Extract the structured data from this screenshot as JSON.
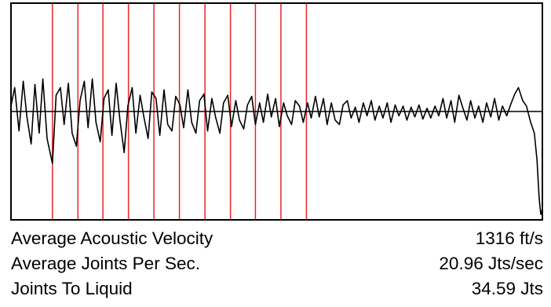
{
  "chart_data": {
    "type": "line",
    "title": "",
    "xlabel": "",
    "ylabel": "",
    "xlim": [
      0,
      100
    ],
    "ylim": [
      -1,
      1
    ],
    "grid": false,
    "baseline": 0,
    "joint_markers": [
      7.8,
      12.6,
      17.3,
      22.1,
      26.9,
      31.7,
      36.5,
      41.3,
      46.0,
      50.8,
      55.6
    ],
    "series": [
      {
        "points": [
          [
            0,
            0.05
          ],
          [
            0.7,
            0.22
          ],
          [
            1.5,
            -0.18
          ],
          [
            2.3,
            0.28
          ],
          [
            3.0,
            -0.05
          ],
          [
            3.8,
            -0.3
          ],
          [
            4.5,
            0.25
          ],
          [
            5.3,
            -0.2
          ],
          [
            6.0,
            0.3
          ],
          [
            6.8,
            -0.25
          ],
          [
            7.8,
            -0.48
          ],
          [
            8.5,
            0.15
          ],
          [
            9.3,
            0.22
          ],
          [
            10.0,
            -0.12
          ],
          [
            10.8,
            0.26
          ],
          [
            11.5,
            -0.2
          ],
          [
            12.3,
            -0.32
          ],
          [
            13.0,
            0.1
          ],
          [
            13.8,
            0.28
          ],
          [
            14.5,
            -0.15
          ],
          [
            15.3,
            0.3
          ],
          [
            16.0,
            -0.1
          ],
          [
            16.8,
            -0.28
          ],
          [
            17.5,
            0.12
          ],
          [
            18.3,
            0.2
          ],
          [
            19.0,
            -0.22
          ],
          [
            19.8,
            0.26
          ],
          [
            20.5,
            -0.08
          ],
          [
            21.3,
            -0.38
          ],
          [
            22.0,
            0.05
          ],
          [
            22.8,
            0.22
          ],
          [
            23.5,
            -0.2
          ],
          [
            24.3,
            0.15
          ],
          [
            25.0,
            -0.05
          ],
          [
            25.8,
            -0.25
          ],
          [
            26.5,
            0.18
          ],
          [
            27.3,
            0.12
          ],
          [
            28.0,
            -0.22
          ],
          [
            28.8,
            0.2
          ],
          [
            29.5,
            -0.12
          ],
          [
            30.3,
            -0.18
          ],
          [
            31.0,
            0.14
          ],
          [
            31.8,
            0.06
          ],
          [
            32.5,
            -0.15
          ],
          [
            33.3,
            0.2
          ],
          [
            34.0,
            -0.1
          ],
          [
            34.8,
            -0.2
          ],
          [
            35.5,
            0.1
          ],
          [
            36.3,
            0.16
          ],
          [
            37.0,
            -0.18
          ],
          [
            37.8,
            0.12
          ],
          [
            38.5,
            -0.05
          ],
          [
            39.3,
            -0.2
          ],
          [
            40.0,
            0.08
          ],
          [
            40.8,
            0.15
          ],
          [
            41.5,
            -0.14
          ],
          [
            42.3,
            0.1
          ],
          [
            43.0,
            -0.08
          ],
          [
            43.8,
            -0.16
          ],
          [
            44.5,
            0.06
          ],
          [
            45.3,
            0.14
          ],
          [
            46.0,
            -0.12
          ],
          [
            46.8,
            0.08
          ],
          [
            47.5,
            -0.1
          ],
          [
            48.3,
            0.16
          ],
          [
            49.0,
            -0.05
          ],
          [
            49.8,
            0.12
          ],
          [
            50.5,
            -0.14
          ],
          [
            51.3,
            0.08
          ],
          [
            52.0,
            -0.04
          ],
          [
            52.8,
            -0.12
          ],
          [
            53.5,
            0.1
          ],
          [
            54.3,
            0.05
          ],
          [
            55.0,
            -0.1
          ],
          [
            55.8,
            0.08
          ],
          [
            56.5,
            -0.06
          ],
          [
            57.3,
            0.14
          ],
          [
            58.0,
            -0.05
          ],
          [
            58.8,
            0.12
          ],
          [
            59.5,
            -0.12
          ],
          [
            60.3,
            0.08
          ],
          [
            61.0,
            -0.08
          ],
          [
            61.8,
            -0.12
          ],
          [
            62.5,
            0.06
          ],
          [
            63.3,
            0.1
          ],
          [
            64.0,
            -0.06
          ],
          [
            64.8,
            0.04
          ],
          [
            65.5,
            -0.1
          ],
          [
            66.3,
            0.08
          ],
          [
            67.0,
            -0.04
          ],
          [
            67.8,
            0.1
          ],
          [
            68.5,
            -0.08
          ],
          [
            69.3,
            0.05
          ],
          [
            70.0,
            -0.06
          ],
          [
            70.8,
            0.08
          ],
          [
            71.5,
            -0.1
          ],
          [
            72.3,
            0.06
          ],
          [
            73.0,
            -0.04
          ],
          [
            73.8,
            0.05
          ],
          [
            74.5,
            -0.08
          ],
          [
            75.3,
            0.04
          ],
          [
            76.0,
            -0.05
          ],
          [
            76.8,
            0.06
          ],
          [
            77.5,
            -0.07
          ],
          [
            78.3,
            0.03
          ],
          [
            79.0,
            -0.06
          ],
          [
            79.8,
            0.05
          ],
          [
            80.5,
            -0.04
          ],
          [
            81.3,
            0.12
          ],
          [
            82.0,
            -0.06
          ],
          [
            82.8,
            0.1
          ],
          [
            83.5,
            -0.1
          ],
          [
            84.3,
            0.15
          ],
          [
            85.0,
            0.04
          ],
          [
            85.8,
            -0.08
          ],
          [
            86.5,
            0.1
          ],
          [
            87.3,
            -0.06
          ],
          [
            88.0,
            0.05
          ],
          [
            88.8,
            -0.1
          ],
          [
            89.5,
            0.08
          ],
          [
            90.3,
            -0.05
          ],
          [
            91.0,
            0.12
          ],
          [
            91.8,
            -0.08
          ],
          [
            92.5,
            0.05
          ],
          [
            93.3,
            -0.04
          ],
          [
            94.0,
            0.06
          ],
          [
            94.8,
            0.16
          ],
          [
            95.5,
            0.22
          ],
          [
            96.3,
            0.1
          ],
          [
            97.0,
            0.05
          ],
          [
            97.8,
            -0.1
          ],
          [
            98.5,
            -0.2
          ],
          [
            99.0,
            -0.45
          ],
          [
            99.4,
            -0.8
          ],
          [
            99.7,
            -0.95
          ],
          [
            100,
            -0.9
          ]
        ]
      }
    ]
  },
  "stats": [
    {
      "label": "Average Acoustic Velocity",
      "value": "1316 ft/s"
    },
    {
      "label": "Average Joints Per Sec.",
      "value": "20.96 Jts/sec"
    },
    {
      "label": "Joints To Liquid",
      "value": "34.59 Jts"
    }
  ],
  "colors": {
    "trace": "#000000",
    "baseline": "#000000",
    "joint_marker": "#e8262a",
    "frame": "#000000",
    "plot_background": "#ffffff"
  }
}
